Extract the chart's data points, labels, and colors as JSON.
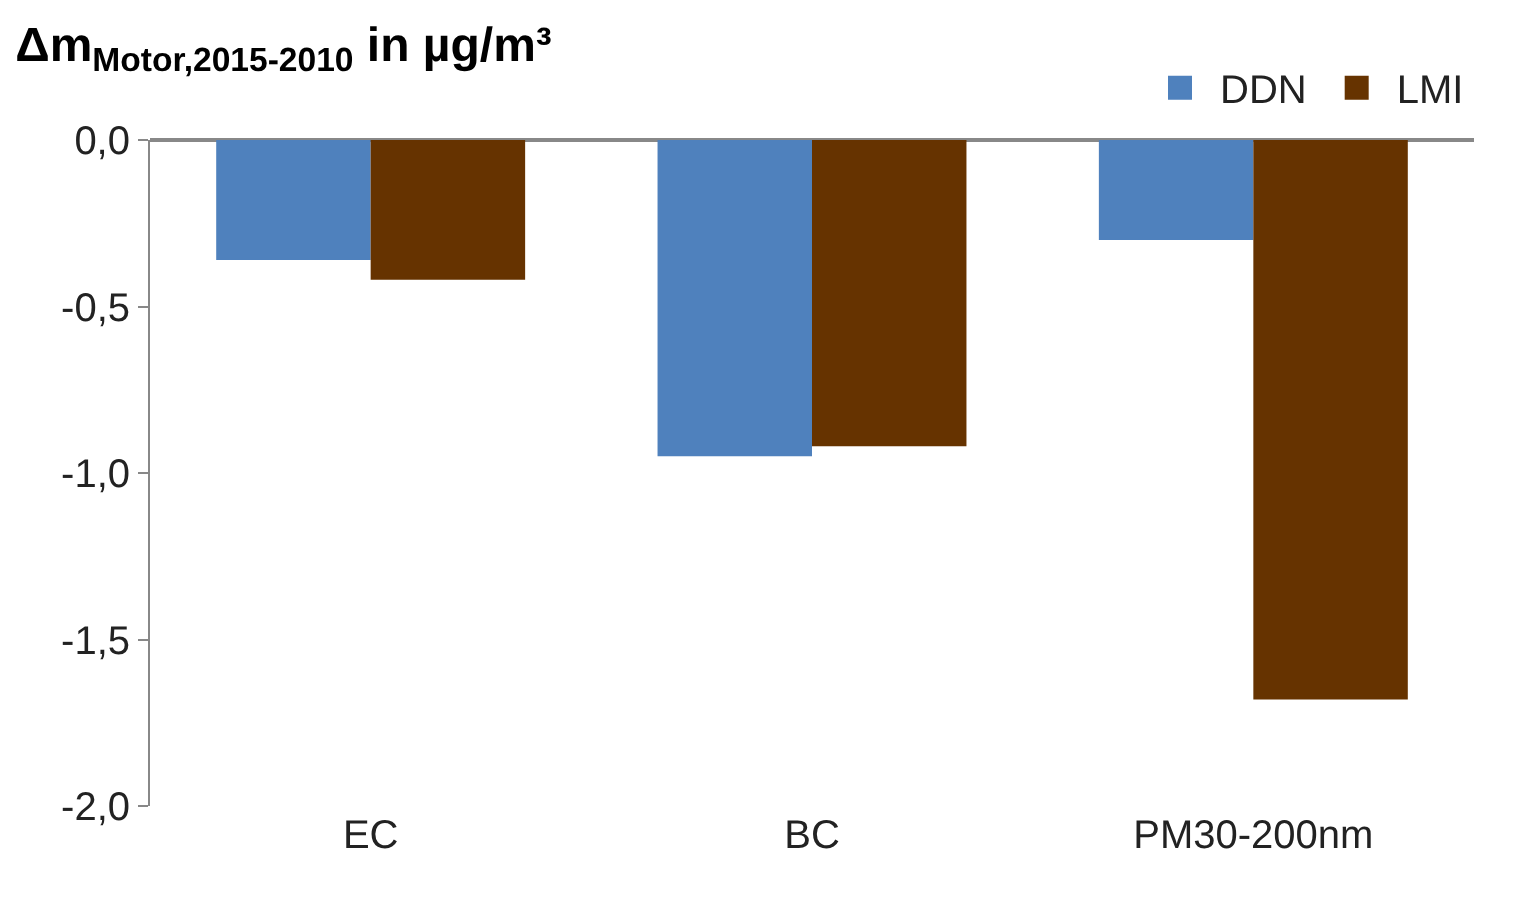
{
  "chart_data": {
    "type": "bar",
    "title": "Δm$_{Motor,2015-2010}$ in µg/m³",
    "categories": [
      "EC",
      "BC",
      "PM30-200nm"
    ],
    "series": [
      {
        "name": "DDN",
        "color": "#4f81bd",
        "values": [
          -0.36,
          -0.95,
          -0.3
        ]
      },
      {
        "name": "LMI",
        "color": "#663300",
        "values": [
          -0.42,
          -0.92,
          -1.68
        ]
      }
    ],
    "ylim": [
      -2.0,
      0.0
    ],
    "yticks": [
      {
        "value": 0,
        "label": "0,0"
      },
      {
        "value": -0.5,
        "label": "-0,5"
      },
      {
        "value": -1.0,
        "label": "-1,0"
      },
      {
        "value": -1.5,
        "label": "-1,5"
      },
      {
        "value": -2.0,
        "label": "-2,0"
      }
    ],
    "legend": "top right"
  }
}
